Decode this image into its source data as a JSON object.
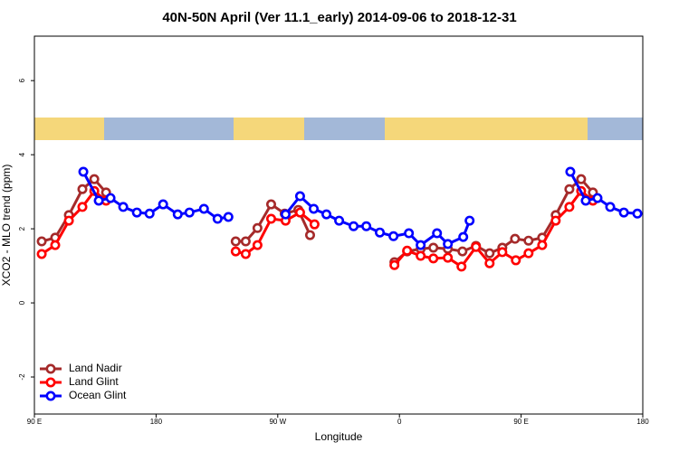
{
  "chart_data": {
    "type": "line",
    "title": "40N-50N April (Ver 11.1_early)   2014-09-06 to 2018-12-31",
    "xlabel": "Longitude",
    "ylabel": "XCO2 - MLO trend (ppm)",
    "xlim": [
      90,
      540
    ],
    "xticks": [
      {
        "value": 90,
        "label": "90 E"
      },
      180,
      {
        "value": 270,
        "label": "90 W"
      },
      {
        "value": 360,
        "label": "0"
      },
      {
        "value": 450,
        "label": "90 E"
      },
      {
        "value": 540,
        "label": "180"
      }
    ],
    "ylim": [
      -3,
      7.2
    ],
    "yticks": [
      -2,
      0,
      2,
      4,
      6
    ],
    "legend": "bottom-left",
    "series": [
      {
        "name": "Land Nadir",
        "color": "#a52a2a",
        "x": [
          95.4,
          105.4,
          115.5,
          125.5,
          134.3,
          143.0,
          null,
          238.9,
          246.3,
          255.0,
          265.1,
          275.1,
          285.2,
          293.9,
          null,
          356.3,
          365.7,
          375.7,
          385.1,
          395.8,
          406.6,
          416.6,
          426.7,
          436.1,
          445.5,
          455.5,
          465.6,
          475.6,
          485.7,
          494.4,
          503.1
        ],
        "values": [
          1.66,
          1.76,
          2.37,
          3.07,
          3.34,
          2.98,
          null,
          1.66,
          1.66,
          2.02,
          2.66,
          2.41,
          2.51,
          1.83,
          null,
          1.1,
          1.39,
          1.46,
          1.49,
          1.46,
          1.39,
          1.54,
          1.34,
          1.49,
          1.73,
          1.68,
          1.76,
          2.37,
          3.07,
          3.34,
          2.98
        ]
      },
      {
        "name": "Land Glint",
        "color": "#ff0000",
        "x": [
          95.4,
          105.4,
          115.5,
          125.5,
          134.3,
          143.0,
          null,
          238.9,
          246.3,
          255.0,
          265.1,
          275.8,
          286.5,
          297.2,
          null,
          356.3,
          365.7,
          375.7,
          385.1,
          395.8,
          405.9,
          416.6,
          426.7,
          436.1,
          446.1,
          455.5,
          465.6,
          475.6,
          485.7,
          494.4,
          503.1
        ],
        "values": [
          1.32,
          1.56,
          2.22,
          2.59,
          3.02,
          2.76,
          null,
          1.39,
          1.32,
          1.56,
          2.27,
          2.22,
          2.44,
          2.12,
          null,
          1.02,
          1.41,
          1.27,
          1.2,
          1.22,
          0.98,
          1.51,
          1.07,
          1.37,
          1.15,
          1.34,
          1.56,
          2.22,
          2.59,
          3.02,
          2.76
        ]
      },
      {
        "name": "Ocean Glint",
        "color": "#0000ff",
        "x": [
          126.2,
          137.6,
          146.3,
          155.7,
          165.8,
          175.2,
          185.2,
          196.0,
          204.7,
          215.4,
          225.5,
          233.5,
          null,
          275.8,
          286.5,
          296.6,
          306.0,
          315.4,
          326.1,
          335.5,
          345.5,
          355.6,
          367.0,
          375.7,
          387.8,
          395.8,
          407.2,
          411.9,
          null,
          486.4,
          497.8,
          506.5,
          515.9,
          526.0,
          536.0
        ],
        "values": [
          3.54,
          2.76,
          2.83,
          2.59,
          2.44,
          2.41,
          2.66,
          2.39,
          2.44,
          2.54,
          2.27,
          2.32,
          null,
          2.39,
          2.88,
          2.54,
          2.39,
          2.22,
          2.07,
          2.07,
          1.9,
          1.8,
          1.88,
          1.56,
          1.88,
          1.59,
          1.78,
          2.22,
          null,
          3.54,
          2.76,
          2.83,
          2.59,
          2.44,
          2.41
        ]
      }
    ]
  }
}
